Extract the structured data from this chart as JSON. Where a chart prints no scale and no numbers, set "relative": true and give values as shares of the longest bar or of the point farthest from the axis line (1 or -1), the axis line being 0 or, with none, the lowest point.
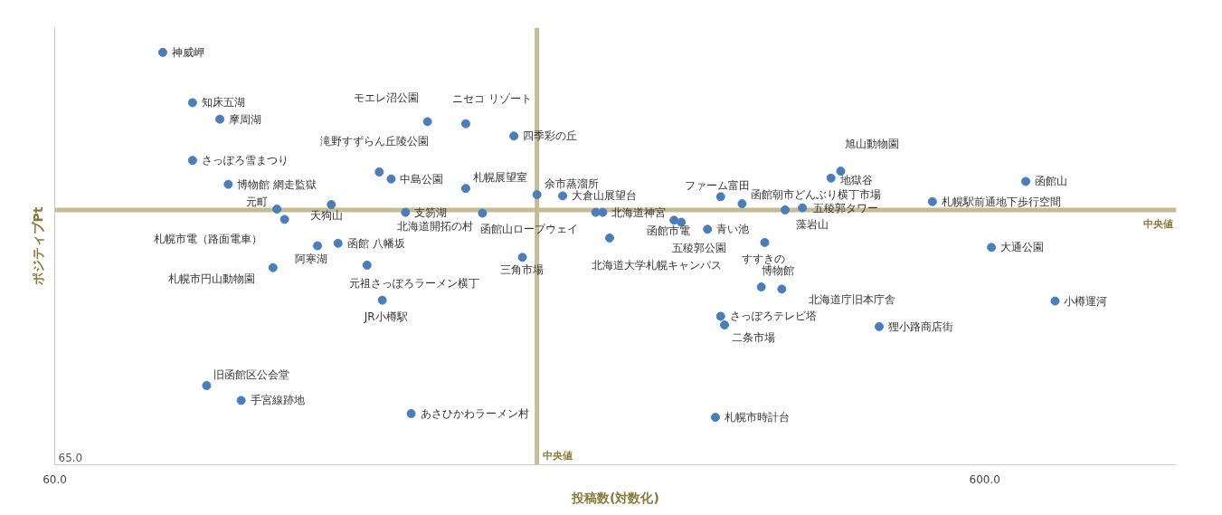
{
  "chart_data": {
    "type": "scatter",
    "xlabel": "投稿数(対数化)",
    "ylabel": "ポジティブPt",
    "relative": true,
    "log": "x",
    "grid": false,
    "marker": "circle",
    "xlim": [
      60,
      964
    ],
    "xticks": [
      {
        "value": 60,
        "label": "60.0"
      },
      {
        "value": 600,
        "label": "600.0"
      }
    ],
    "series": [
      {
        "color": "#4a7ebb",
        "x": [
          78.4,
          84.4,
          90.3,
          84.4,
          92.2,
          104,
          119,
          106,
          115,
          121,
          103,
          130,
          135,
          87.4,
          95.2,
          145,
          151,
          166,
          187,
          134,
          138,
          166,
          198,
          211,
          143,
          173,
          191,
          229,
          233,
          237,
          278,
          283,
          302,
          312,
          329,
          348,
          345,
          363,
          312,
          315,
          308,
          382,
          366,
          420,
          410,
          462,
          527,
          664,
          610,
          714
        ],
        "values": [
          1.0,
          0.878,
          0.838,
          0.738,
          0.68,
          0.62,
          0.631,
          0.595,
          0.531,
          0.537,
          0.478,
          0.484,
          0.399,
          0.192,
          0.156,
          0.124,
          0.832,
          0.827,
          0.797,
          0.71,
          0.693,
          0.67,
          0.655,
          0.652,
          0.612,
          0.61,
          0.503,
          0.612,
          0.612,
          0.55,
          0.593,
          0.588,
          0.571,
          0.65,
          0.633,
          0.539,
          0.431,
          0.426,
          0.36,
          0.339,
          0.115,
          0.623,
          0.618,
          0.712,
          0.695,
          0.335,
          0.638,
          0.687,
          0.527,
          0.397
        ]
      }
    ],
    "ref_lines": [
      {
        "axis": "x",
        "value": 198,
        "label": "中央値",
        "color": "#c5bb94"
      },
      {
        "axis": "y",
        "value": 0.618,
        "label": "中央値",
        "color": "#c5bb94"
      }
    ],
    "annotations": [
      "65.0",
      {
        "text": "神威岬",
        "x": 78.4,
        "y": 1.0
      },
      {
        "text": "知床五湖",
        "x": 84.4,
        "y": 0.878
      },
      {
        "text": "摩周湖",
        "x": 90.3,
        "y": 0.838
      },
      {
        "text": "さっぽろ雪まつり",
        "x": 84.4,
        "y": 0.738
      },
      {
        "text": "博物館 網走監獄",
        "x": 92.2,
        "y": 0.68
      },
      {
        "text": "元町",
        "x": 104,
        "y": 0.62
      },
      {
        "text": "天狗山",
        "x": 119,
        "y": 0.631
      },
      {
        "text": "札幌市電（路面電車）",
        "x": 106,
        "y": 0.595
      },
      {
        "text": "阿寒湖",
        "x": 115,
        "y": 0.531
      },
      {
        "text": "函館 八幡坂",
        "x": 121,
        "y": 0.537
      },
      {
        "text": "札幌市円山動物園",
        "x": 103,
        "y": 0.478
      },
      {
        "text": "元祖さっぽろラーメン横丁",
        "x": 130,
        "y": 0.484
      },
      {
        "text": "JR小樽駅",
        "x": 135,
        "y": 0.399
      },
      {
        "text": "旧函館区公会堂",
        "x": 87.4,
        "y": 0.192
      },
      {
        "text": "手宮線跡地",
        "x": 95.2,
        "y": 0.156
      },
      {
        "text": "あさひかわラーメン村",
        "x": 145,
        "y": 0.124
      },
      {
        "text": "モエレ沼公園",
        "x": 151,
        "y": 0.832
      },
      {
        "text": "ニセコ リゾート",
        "x": 166,
        "y": 0.827
      },
      {
        "text": "四季彩の丘",
        "x": 187,
        "y": 0.797
      },
      {
        "text": "滝野すずらん丘陵公園",
        "x": 134,
        "y": 0.71
      },
      {
        "text": "中島公園",
        "x": 138,
        "y": 0.693
      },
      {
        "text": "札幌展望室",
        "x": 166,
        "y": 0.67
      },
      {
        "text": "余市蒸溜所",
        "x": 198,
        "y": 0.655
      },
      {
        "text": "大倉山展望台",
        "x": 211,
        "y": 0.652
      },
      {
        "text": "支笏湖",
        "x": 143,
        "y": 0.612
      },
      {
        "text": "北海道開拓の村",
        "x": 173,
        "y": 0.61
      },
      {
        "text": "三角市場",
        "x": 191,
        "y": 0.503
      },
      {
        "text": "函館山ロープウェイ",
        "x": 229,
        "y": 0.612
      },
      {
        "text": "北海道神宮",
        "x": 233,
        "y": 0.612
      },
      {
        "text": "北海道大学札幌キャンパス",
        "x": 237,
        "y": 0.55
      },
      {
        "text": "函館市電",
        "x": 278,
        "y": 0.593
      },
      {
        "text": "五稜郭公園",
        "x": 283,
        "y": 0.588
      },
      {
        "text": "青い池",
        "x": 302,
        "y": 0.571
      },
      {
        "text": "ファーム富田",
        "x": 312,
        "y": 0.65
      },
      {
        "text": "函館朝市どんぶり横丁市場",
        "x": 329,
        "y": 0.633
      },
      {
        "text": "すすきの",
        "x": 348,
        "y": 0.539
      },
      {
        "text": "博物館",
        "x": 345,
        "y": 0.431
      },
      {
        "text": "北海道庁旧本庁舎",
        "x": 363,
        "y": 0.426
      },
      {
        "text": "さっぽろテレビ塔",
        "x": 312,
        "y": 0.36
      },
      {
        "text": "二条市場",
        "x": 315,
        "y": 0.339
      },
      {
        "text": "札幌市時計台",
        "x": 308,
        "y": 0.115
      },
      {
        "text": "五稜郭タワー",
        "x": 382,
        "y": 0.623
      },
      {
        "text": "藻岩山",
        "x": 366,
        "y": 0.618
      },
      {
        "text": "旭山動物園",
        "x": 420,
        "y": 0.712
      },
      {
        "text": "地獄谷",
        "x": 410,
        "y": 0.695
      },
      {
        "text": "狸小路商店街",
        "x": 462,
        "y": 0.335
      },
      {
        "text": "札幌駅前通地下歩行空間",
        "x": 527,
        "y": 0.638
      },
      {
        "text": "函館山",
        "x": 664,
        "y": 0.687
      },
      {
        "text": "大通公園",
        "x": 610,
        "y": 0.527
      },
      {
        "text": "小樽運河",
        "x": 714,
        "y": 0.397
      }
    ]
  }
}
